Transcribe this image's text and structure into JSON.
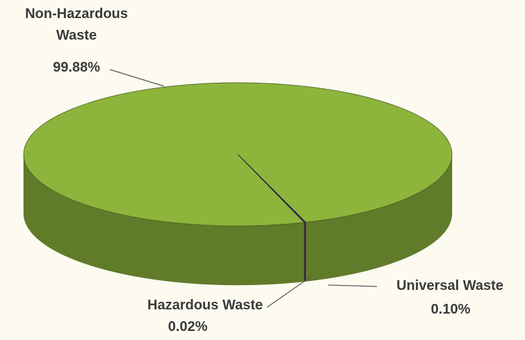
{
  "chart_data": {
    "type": "pie3d",
    "categories": [
      "Non-Hazardous Waste",
      "Hazardous Waste",
      "Universal Waste"
    ],
    "values": [
      99.88,
      0.02,
      0.1
    ],
    "value_labels": [
      "99.88%",
      "0.02%",
      "0.10%"
    ],
    "colors": [
      "#8db53c",
      "#c0282e",
      "#3b3f8f"
    ]
  }
}
